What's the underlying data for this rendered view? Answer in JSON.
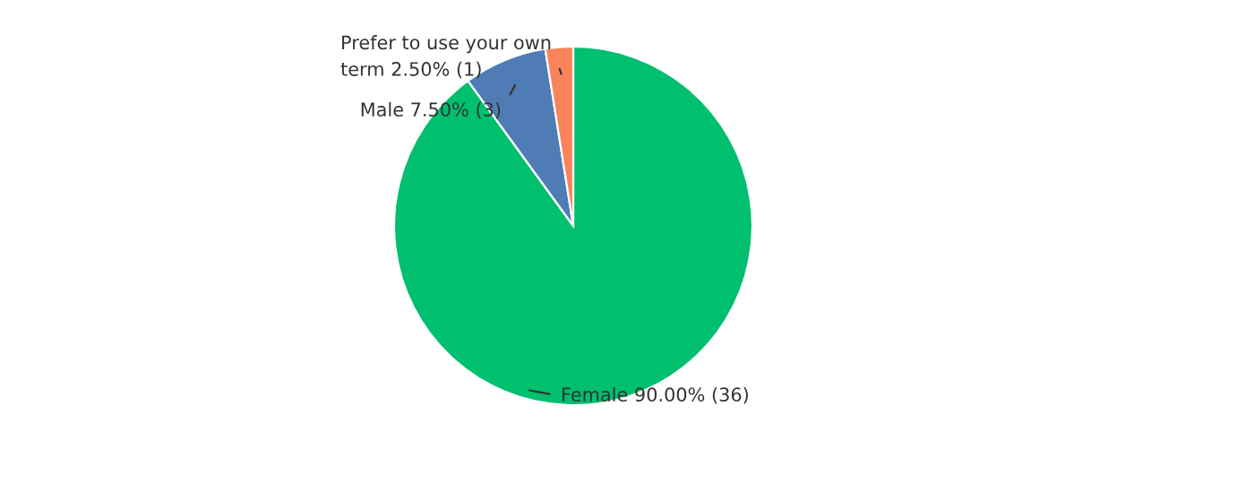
{
  "chart_data": {
    "type": "pie",
    "categories": [
      "Female",
      "Male",
      "Prefer to use your own\nterm"
    ],
    "values": [
      90,
      7.5,
      2.5
    ],
    "colors": [
      "#00bf6f",
      "#507cb6",
      "#f9845b"
    ],
    "value_labels": [
      "90.00% (36)",
      "7.50% (3)",
      "2.50% (1)"
    ]
  }
}
